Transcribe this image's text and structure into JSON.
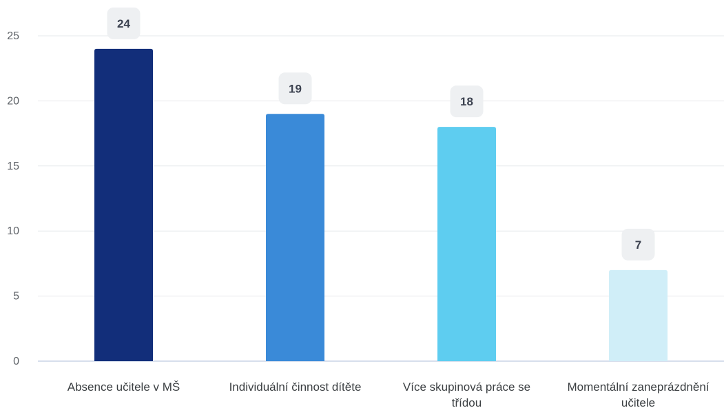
{
  "chart_data": {
    "type": "bar",
    "categories": [
      [
        "Absence učitele v MŠ"
      ],
      [
        "Individuální činnost dítěte"
      ],
      [
        "Více skupinová práce se",
        "třídou"
      ],
      [
        "Momentální zaneprázdnění",
        "učitele"
      ]
    ],
    "values": [
      24,
      19,
      18,
      7
    ],
    "bar_colors": [
      "#122e7a",
      "#3a8ad8",
      "#5ecdf0",
      "#d0eef8"
    ],
    "ylim": [
      0,
      25
    ],
    "yticks": [
      0,
      5,
      10,
      15,
      20,
      25
    ],
    "title": "",
    "xlabel": "",
    "ylabel": "",
    "grid": true,
    "data_labels": true
  }
}
